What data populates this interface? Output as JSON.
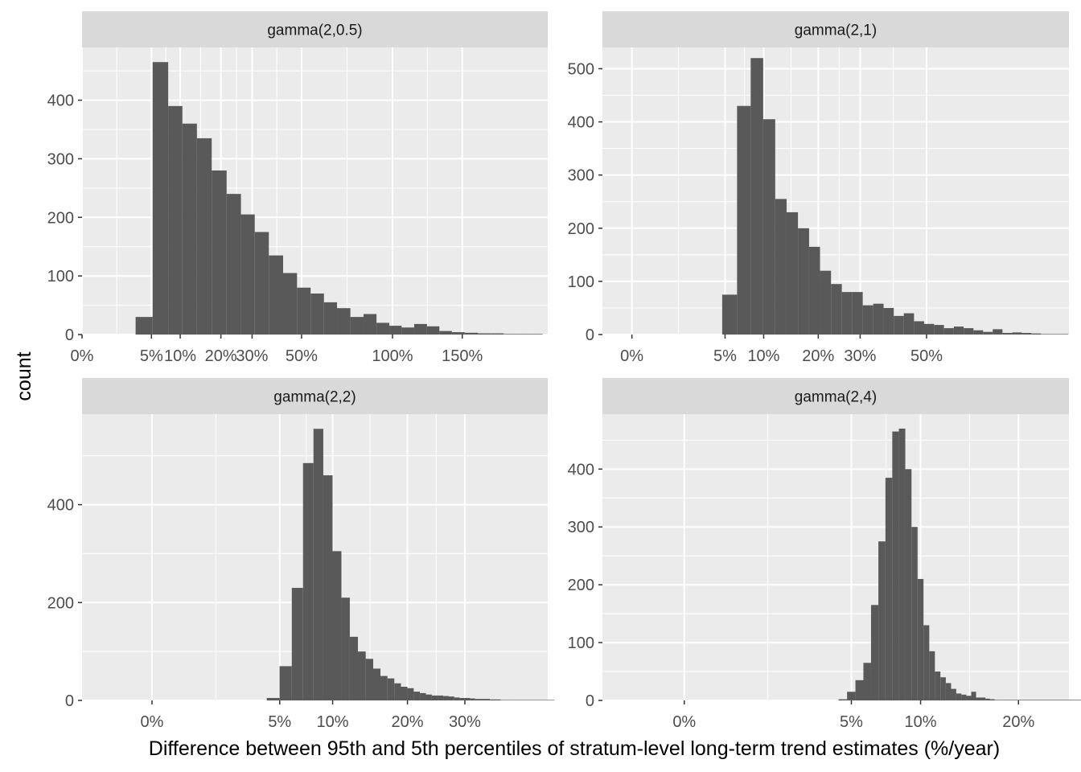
{
  "chart_data": {
    "type": "bar",
    "layout": "facet_wrap 2x2",
    "xlabel": "Difference between 95th and 5th percentiles of stratum-level long-term trend estimates (%/year)",
    "ylabel": "count",
    "grid": true,
    "x_scale": "sqrt",
    "colors": {
      "panel_bg": "#EBEBEB",
      "strip_bg": "#D9D9D9",
      "grid": "#FFFFFF",
      "bar": "#595959",
      "tick_text": "#4D4D4D",
      "strip_text": "#1A1A1A"
    },
    "panels": [
      {
        "strip_label": "gamma(2,0.5)",
        "x_ticks": [
          0,
          5,
          10,
          20,
          30,
          50,
          100,
          150
        ],
        "x_tick_labels": [
          "0%",
          "5%",
          "10%",
          "20%",
          "30%",
          "50%",
          "100%",
          "150%"
        ],
        "y_ticks": [
          0,
          100,
          200,
          300,
          400
        ],
        "ylim": [
          0,
          490
        ],
        "xlim": [
          0,
          225
        ],
        "bars": {
          "x": [
            4,
            6.5,
            9,
            12,
            15.5,
            19.5,
            24,
            28.5,
            33.5,
            39,
            45,
            51,
            57.5,
            64,
            71,
            78.5,
            86,
            94,
            102,
            110,
            119,
            128,
            137,
            147,
            157,
            168,
            179,
            190,
            202,
            214
          ],
          "count": [
            30,
            465,
            390,
            360,
            335,
            280,
            240,
            205,
            175,
            135,
            105,
            80,
            70,
            55,
            45,
            30,
            35,
            20,
            15,
            12,
            18,
            14,
            6,
            4,
            3,
            2,
            2,
            1,
            1,
            1
          ]
        }
      },
      {
        "strip_label": "gamma(2,1)",
        "x_ticks": [
          0,
          5,
          10,
          20,
          30,
          50
        ],
        "x_tick_labels": [
          "0%",
          "5%",
          "10%",
          "20%",
          "30%",
          "50%"
        ],
        "y_ticks": [
          0,
          100,
          200,
          300,
          400,
          500
        ],
        "ylim": [
          0,
          540
        ],
        "xlim": [
          -0.5,
          110
        ],
        "bars": {
          "x": [
            5.5,
            7.3,
            9.0,
            10.9,
            12.8,
            14.8,
            17.0,
            19.2,
            21.6,
            24.1,
            26.7,
            29.3,
            32.1,
            35.0,
            38.0,
            41.0,
            44.2,
            47.5,
            50.9,
            54.3,
            57.9,
            61.5,
            65.3,
            69.1,
            73.0,
            77.0,
            81.2,
            85.4,
            89.7,
            94.1,
            98.5,
            103.1,
            107.5
          ],
          "count": [
            75,
            430,
            520,
            405,
            255,
            230,
            200,
            165,
            120,
            95,
            80,
            80,
            55,
            58,
            50,
            35,
            40,
            25,
            20,
            18,
            12,
            15,
            12,
            8,
            5,
            10,
            3,
            4,
            3,
            2,
            1,
            1,
            1
          ]
        }
      },
      {
        "strip_label": "gamma(2,2)",
        "x_ticks": [
          0,
          5,
          10,
          20,
          30
        ],
        "x_tick_labels": [
          "0%",
          "5%",
          "10%",
          "20%",
          "30%"
        ],
        "y_ticks": [
          0,
          200,
          400
        ],
        "ylim": [
          0,
          585
        ],
        "xlim": [
          -1.5,
          48
        ],
        "bars": {
          "x": [
            4.5,
            5.5,
            6.5,
            7.5,
            8.5,
            9.5,
            10.5,
            11.5,
            12.5,
            13.5,
            14.5,
            15.5,
            16.5,
            17.5,
            18.5,
            19.5,
            20.5,
            21.5,
            22.5,
            23.5,
            24.5,
            25.5,
            26.5,
            27.5,
            28.5,
            29.5,
            30.5,
            31.5,
            32.5,
            34.0,
            36.0,
            38.5,
            42.0,
            47.0
          ],
          "count": [
            5,
            70,
            230,
            485,
            555,
            460,
            305,
            210,
            130,
            100,
            85,
            65,
            50,
            45,
            35,
            28,
            25,
            18,
            15,
            12,
            10,
            10,
            9,
            8,
            6,
            5,
            5,
            4,
            3,
            3,
            2,
            1,
            1,
            1
          ]
        }
      },
      {
        "strip_label": "gamma(2,4)",
        "x_ticks": [
          0,
          5,
          10,
          20
        ],
        "x_tick_labels": [
          "0%",
          "5%",
          "10%",
          "20%"
        ],
        "y_ticks": [
          0,
          100,
          200,
          300,
          400
        ],
        "ylim": [
          0,
          495
        ],
        "xlim": [
          -1.2,
          26.5
        ],
        "bars": {
          "x": [
            4.5,
            5.0,
            5.5,
            6.0,
            6.5,
            7.0,
            7.5,
            8.0,
            8.5,
            9.0,
            9.5,
            10.0,
            10.5,
            11.0,
            11.5,
            12.0,
            12.5,
            13.0,
            13.5,
            14.0,
            14.5,
            15.0,
            15.5,
            16.0,
            16.5,
            17.0,
            17.5,
            18.0,
            18.5,
            19.0,
            19.5,
            20.0,
            25.5
          ],
          "count": [
            2,
            15,
            35,
            65,
            165,
            275,
            385,
            465,
            470,
            400,
            300,
            210,
            130,
            85,
            50,
            40,
            30,
            20,
            12,
            10,
            8,
            15,
            5,
            5,
            3,
            2,
            1,
            1,
            1,
            1,
            1,
            1,
            1
          ]
        }
      }
    ]
  }
}
